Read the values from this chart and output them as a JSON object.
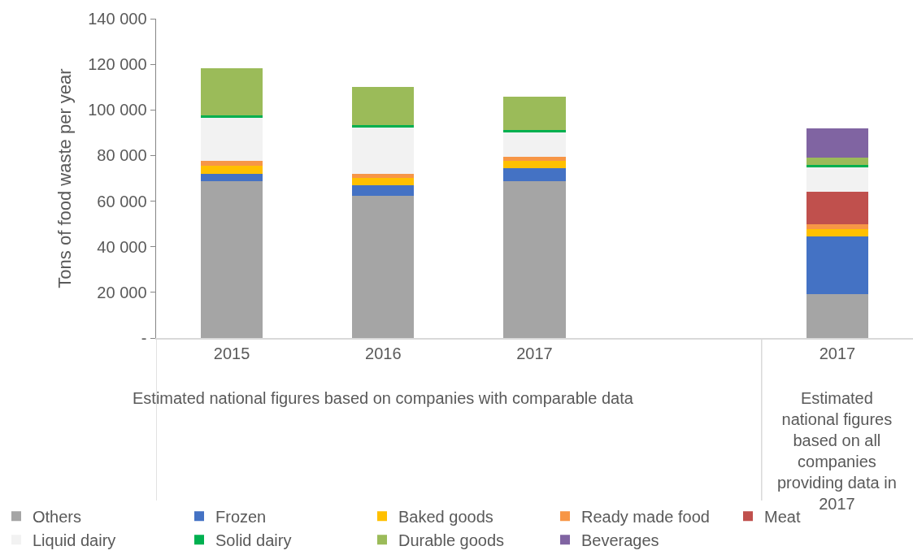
{
  "chart_data": {
    "type": "bar",
    "stacked": true,
    "ylabel": "Tons of food waste per year",
    "categories": [
      "2015",
      "2016",
      "2017",
      null,
      "2017"
    ],
    "ylim": [
      0,
      140000
    ],
    "yticks": [
      {
        "value": 0,
        "label": "-"
      },
      {
        "value": 20000,
        "label": "20 000"
      },
      {
        "value": 40000,
        "label": "40 000"
      },
      {
        "value": 60000,
        "label": "60 000"
      },
      {
        "value": 80000,
        "label": "80 000"
      },
      {
        "value": 100000,
        "label": "100 000"
      },
      {
        "value": 120000,
        "label": "120 000"
      },
      {
        "value": 140000,
        "label": "140 000"
      }
    ],
    "grid": false,
    "legend": "bottom",
    "annotations": [
      "Estimated national figures based on companies with comparable data",
      "Estimated national figures based on all companies providing data in 2017"
    ],
    "series": [
      {
        "name": "Others",
        "color": "#a5a5a5",
        "values": [
          68600,
          62400,
          68900,
          null,
          19200
        ]
      },
      {
        "name": "Frozen",
        "color": "#4472c4",
        "values": [
          3200,
          4500,
          5700,
          null,
          25500
        ]
      },
      {
        "name": "Baked goods",
        "color": "#ffc000",
        "values": [
          3600,
          3200,
          3000,
          null,
          3200
        ]
      },
      {
        "name": "Ready made food",
        "color": "#f79646",
        "values": [
          2200,
          2000,
          1900,
          null,
          2000
        ]
      },
      {
        "name": "Meat",
        "color": "#c0504d",
        "values": [
          null,
          null,
          null,
          null,
          14400
        ]
      },
      {
        "name": "Liquid dairy",
        "color": "#f2f2f2",
        "values": [
          18800,
          20000,
          10700,
          null,
          10600
        ]
      },
      {
        "name": "Solid dairy",
        "color": "#00b050",
        "values": [
          1200,
          1100,
          900,
          null,
          1000
        ]
      },
      {
        "name": "Durable goods",
        "color": "#9bbb59",
        "values": [
          20500,
          17000,
          14600,
          null,
          3200
        ]
      },
      {
        "name": "Beverages",
        "color": "#8064a2",
        "values": [
          null,
          null,
          null,
          null,
          12800
        ]
      }
    ]
  }
}
